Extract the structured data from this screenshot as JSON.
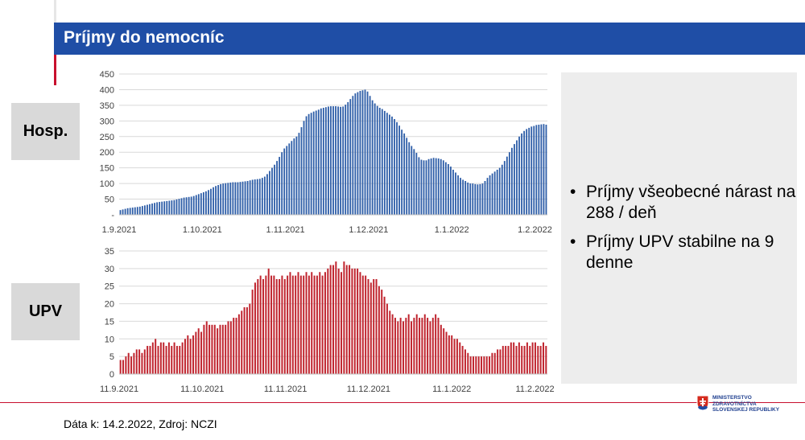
{
  "header": {
    "title": "Príjmy do nemocníc"
  },
  "labels": {
    "hosp": "Hosp.",
    "upv": "UPV"
  },
  "bullets": [
    "Príjmy všeobecné nárast na 288 / deň",
    "Príjmy UPV stabilne na 9 denne"
  ],
  "footer": {
    "source": "Dáta k: 14.2.2022, Zdroj: NCZI"
  },
  "logo": {
    "line1": "MINISTERSTVO",
    "line2": "ZDRAVOTNÍCTVA",
    "line3": "SLOVENSKEJ REPUBLIKY"
  },
  "colors": {
    "header": "#1f4ea6",
    "hosp_bars": "#2e5ea8",
    "upv_bars": "#c0252f",
    "accent_red": "#c8102e"
  },
  "chart_data": [
    {
      "type": "bar",
      "name": "Hosp.",
      "x_start": "1.9.2021",
      "x_end": "14.2.2022",
      "xticks": [
        "1.9.2021",
        "1.10.2021",
        "1.11.2021",
        "1.12.2021",
        "1.1.2022",
        "1.2.2022"
      ],
      "yticks": [
        "-",
        "50",
        "100",
        "150",
        "200",
        "250",
        "300",
        "350",
        "400",
        "450"
      ],
      "ylim": [
        0,
        450
      ],
      "grid": true,
      "values": [
        15,
        17,
        19,
        21,
        22,
        23,
        24,
        25,
        26,
        28,
        30,
        32,
        34,
        36,
        38,
        40,
        41,
        42,
        43,
        44,
        45,
        46,
        47,
        49,
        51,
        53,
        55,
        56,
        57,
        58,
        60,
        63,
        66,
        69,
        72,
        75,
        79,
        83,
        88,
        92,
        95,
        98,
        100,
        101,
        102,
        103,
        104,
        104,
        104,
        105,
        106,
        107,
        108,
        110,
        112,
        113,
        114,
        115,
        118,
        122,
        130,
        140,
        150,
        160,
        172,
        185,
        200,
        212,
        220,
        228,
        236,
        244,
        250,
        262,
        280,
        300,
        315,
        322,
        326,
        330,
        333,
        336,
        340,
        342,
        344,
        346,
        347,
        347,
        347,
        346,
        345,
        346,
        352,
        360,
        370,
        380,
        388,
        392,
        396,
        398,
        400,
        394,
        380,
        366,
        356,
        348,
        342,
        338,
        332,
        326,
        320,
        314,
        306,
        296,
        285,
        272,
        260,
        246,
        232,
        220,
        210,
        198,
        184,
        176,
        174,
        174,
        178,
        180,
        182,
        181,
        180,
        178,
        174,
        168,
        162,
        154,
        144,
        135,
        126,
        118,
        112,
        108,
        103,
        100,
        100,
        98,
        97,
        98,
        100,
        108,
        118,
        126,
        132,
        138,
        144,
        150,
        160,
        172,
        186,
        200,
        214,
        226,
        238,
        250,
        260,
        268,
        274,
        278,
        282,
        284,
        287,
        288,
        289,
        290,
        288
      ]
    },
    {
      "type": "bar",
      "name": "UPV",
      "x_start": "11.9.2021",
      "x_end": "14.2.2022",
      "xticks": [
        "11.9.2021",
        "11.10.2021",
        "11.11.2021",
        "11.12.2021",
        "11.1.2022",
        "11.2.2022"
      ],
      "yticks": [
        "0",
        "5",
        "10",
        "15",
        "20",
        "25",
        "30",
        "35"
      ],
      "ylim": [
        0,
        35
      ],
      "grid": true,
      "values": [
        4,
        4,
        5,
        6,
        5,
        6,
        7,
        7,
        6,
        7,
        8,
        8,
        9,
        10,
        8,
        9,
        9,
        8,
        9,
        8,
        9,
        8,
        8,
        9,
        10,
        11,
        10,
        11,
        12,
        13,
        12,
        14,
        15,
        14,
        14,
        14,
        13,
        14,
        14,
        14,
        15,
        15,
        16,
        16,
        17,
        18,
        19,
        19,
        20,
        24,
        26,
        27,
        28,
        27,
        28,
        30,
        28,
        28,
        27,
        27,
        28,
        27,
        28,
        29,
        28,
        28,
        29,
        28,
        28,
        29,
        28,
        29,
        28,
        28,
        29,
        28,
        29,
        30,
        31,
        31,
        32,
        30,
        29,
        32,
        31,
        31,
        30,
        30,
        30,
        29,
        28,
        28,
        27,
        26,
        27,
        27,
        25,
        24,
        22,
        20,
        18,
        17,
        16,
        15,
        16,
        15,
        16,
        17,
        15,
        16,
        17,
        16,
        16,
        17,
        16,
        15,
        16,
        17,
        16,
        14,
        13,
        12,
        11,
        11,
        10,
        10,
        9,
        8,
        7,
        6,
        5,
        5,
        5,
        5,
        5,
        5,
        5,
        5,
        6,
        6,
        7,
        7,
        8,
        8,
        8,
        9,
        9,
        8,
        9,
        8,
        8,
        9,
        8,
        9,
        9,
        8,
        8,
        9,
        8
      ]
    }
  ]
}
